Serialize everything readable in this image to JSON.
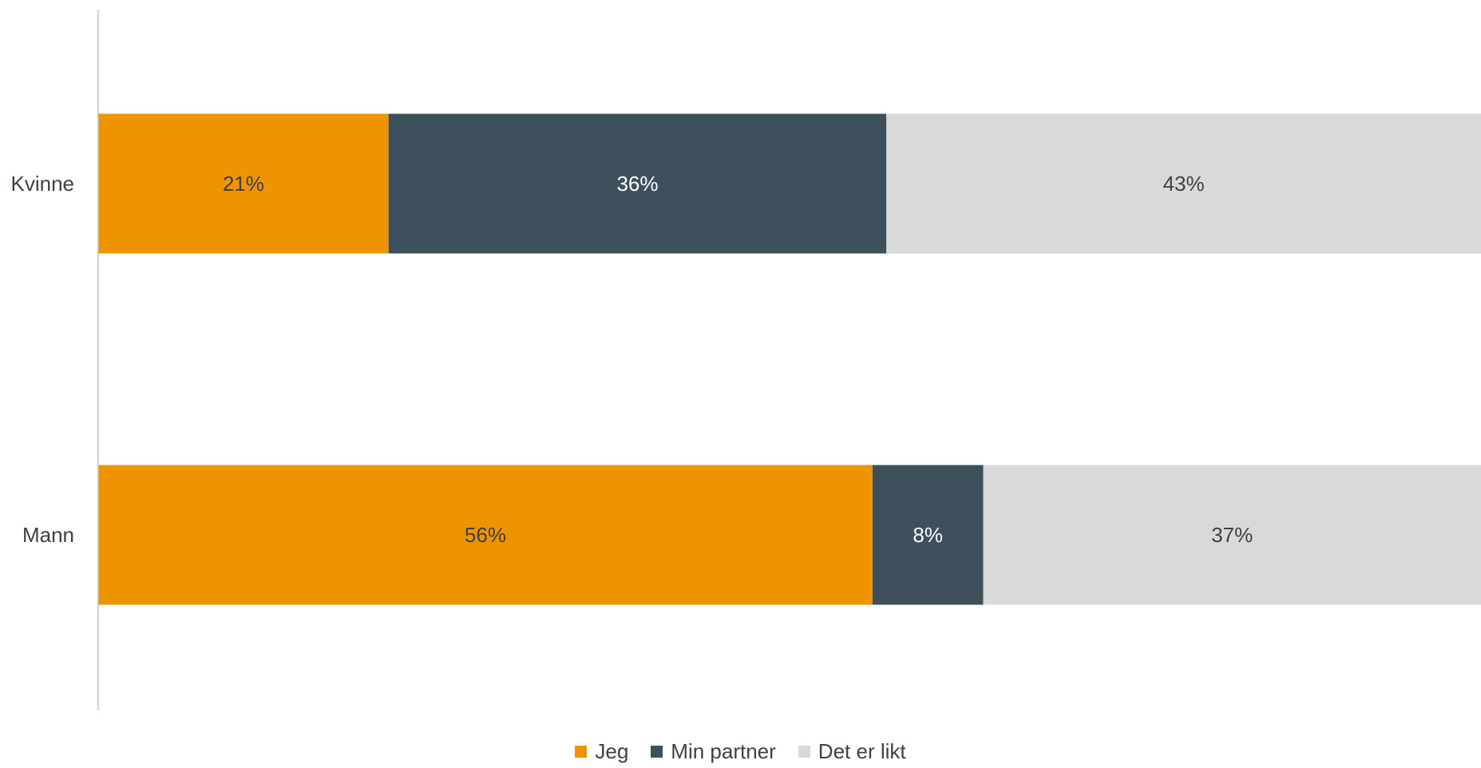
{
  "chart_data": {
    "type": "bar",
    "orientation": "horizontal",
    "stacked": true,
    "categories": [
      "Kvinne",
      "Mann"
    ],
    "series": [
      {
        "name": "Jeg",
        "color": "#ED9400",
        "values": [
          21,
          56
        ],
        "labels": [
          "21%",
          "56%"
        ]
      },
      {
        "name": "Min partner",
        "color": "#3E505B",
        "values": [
          36,
          8
        ],
        "labels": [
          "36%",
          "8%"
        ]
      },
      {
        "name": "Det er likt",
        "color": "#D9D9D9",
        "values": [
          43,
          37
        ],
        "labels": [
          "43%",
          "37%"
        ]
      }
    ],
    "xlim": [
      0,
      100
    ],
    "grid": false,
    "legend_position": "bottom"
  }
}
